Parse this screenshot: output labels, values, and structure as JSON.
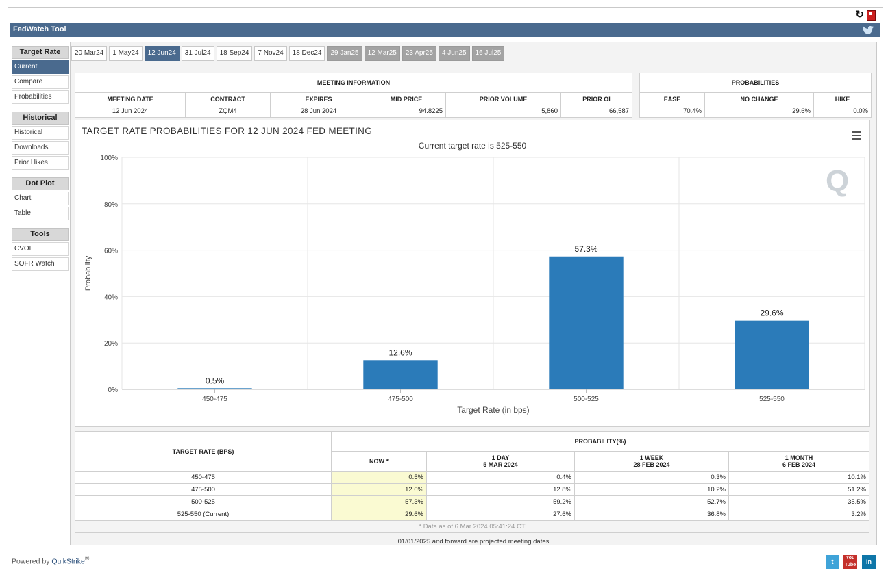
{
  "app": {
    "title": "FedWatch Tool"
  },
  "sidebar": {
    "sections": [
      {
        "heading": "Target Rate",
        "items": [
          "Current",
          "Compare",
          "Probabilities"
        ]
      },
      {
        "heading": "Historical",
        "items": [
          "Historical",
          "Downloads",
          "Prior Hikes"
        ]
      },
      {
        "heading": "Dot Plot",
        "items": [
          "Chart",
          "Table"
        ]
      },
      {
        "heading": "Tools",
        "items": [
          "CVOL",
          "SOFR Watch"
        ]
      }
    ],
    "active_item": "Current"
  },
  "tabs": [
    {
      "label": "20 Mar24",
      "state": "normal"
    },
    {
      "label": "1 May24",
      "state": "normal"
    },
    {
      "label": "12 Jun24",
      "state": "active"
    },
    {
      "label": "31 Jul24",
      "state": "normal"
    },
    {
      "label": "18 Sep24",
      "state": "normal"
    },
    {
      "label": "7 Nov24",
      "state": "normal"
    },
    {
      "label": "18 Dec24",
      "state": "normal"
    },
    {
      "label": "29 Jan25",
      "state": "projected"
    },
    {
      "label": "12 Mar25",
      "state": "projected"
    },
    {
      "label": "23 Apr25",
      "state": "projected"
    },
    {
      "label": "4 Jun25",
      "state": "projected"
    },
    {
      "label": "16 Jul25",
      "state": "projected"
    }
  ],
  "meeting_info": {
    "heading": "MEETING INFORMATION",
    "columns": [
      "MEETING DATE",
      "CONTRACT",
      "EXPIRES",
      "MID PRICE",
      "PRIOR VOLUME",
      "PRIOR OI"
    ],
    "values": [
      "12 Jun 2024",
      "ZQM4",
      "28 Jun 2024",
      "94.8225",
      "5,860",
      "66,587"
    ]
  },
  "probabilities_box": {
    "heading": "PROBABILITIES",
    "columns": [
      "EASE",
      "NO CHANGE",
      "HIKE"
    ],
    "values": [
      "70.4%",
      "29.6%",
      "0.0%"
    ]
  },
  "chart_data": {
    "type": "bar",
    "title": "TARGET RATE PROBABILITIES FOR 12 JUN 2024 FED MEETING",
    "subtitle": "Current target rate is 525-550",
    "xlabel": "Target Rate (in bps)",
    "ylabel": "Probability",
    "categories": [
      "450-475",
      "475-500",
      "500-525",
      "525-550"
    ],
    "values": [
      0.5,
      12.6,
      57.3,
      29.6
    ],
    "data_labels": [
      "0.5%",
      "12.6%",
      "57.3%",
      "29.6%"
    ],
    "ylim": [
      0,
      100
    ],
    "yticks": [
      0,
      20,
      40,
      60,
      80,
      100
    ],
    "ytick_labels": [
      "0%",
      "20%",
      "40%",
      "60%",
      "80%",
      "100%"
    ],
    "bar_color": "#2b7bb9",
    "grid": true,
    "legend": "none"
  },
  "prob_table": {
    "rate_header": "TARGET RATE (BPS)",
    "group_header": "PROBABILITY(%)",
    "columns": [
      {
        "line1": "NOW *",
        "line2": ""
      },
      {
        "line1": "1 DAY",
        "line2": "5 MAR 2024"
      },
      {
        "line1": "1 WEEK",
        "line2": "28 FEB 2024"
      },
      {
        "line1": "1 MONTH",
        "line2": "6 FEB 2024"
      }
    ],
    "rows": [
      {
        "rate": "450-475",
        "values": [
          "0.5%",
          "0.4%",
          "0.3%",
          "10.1%"
        ]
      },
      {
        "rate": "475-500",
        "values": [
          "12.6%",
          "12.8%",
          "10.2%",
          "51.2%"
        ]
      },
      {
        "rate": "500-525",
        "values": [
          "57.3%",
          "59.2%",
          "52.7%",
          "35.5%"
        ]
      },
      {
        "rate": "525-550 (Current)",
        "values": [
          "29.6%",
          "27.6%",
          "36.8%",
          "3.2%"
        ]
      }
    ],
    "footnote": "* Data as of 6 Mar 2024 05:41:24 CT"
  },
  "note": "01/01/2025 and forward are projected meeting dates",
  "footer": {
    "powered_by": "Powered by",
    "brand": "QuikStrike",
    "reg": "®"
  },
  "watermark": "Q",
  "colors": {
    "header": "#4a6a8e",
    "projected_tab": "#a3a3a3",
    "now_highlight": "#fafad2"
  }
}
